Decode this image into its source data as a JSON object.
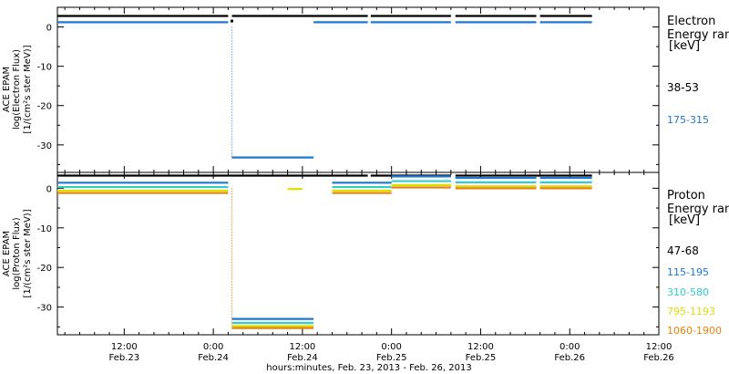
{
  "xaxis": {
    "tick_labels": [
      {
        "time": "12:00",
        "date": "Feb.23"
      },
      {
        "time": "0:00",
        "date": "Feb.24"
      },
      {
        "time": "12:00",
        "date": "Feb.24"
      },
      {
        "time": "0:00",
        "date": "Feb.25"
      },
      {
        "time": "12:00",
        "date": "Feb.25"
      },
      {
        "time": "0:00",
        "date": "Feb.26"
      },
      {
        "time": "12:00",
        "date": "Feb.26"
      }
    ],
    "title": "hours:minutes, Feb. 23, 2013 - Feb. 26, 2013"
  },
  "chart_data": [
    {
      "type": "scatter",
      "ylabel_lines": [
        "ACE EPAM",
        "log(Electron Flux)",
        "[1/(cm²s ster MeV)]"
      ],
      "ylim": [
        -37,
        5
      ],
      "yticks": [
        0,
        -10,
        -20,
        -30
      ],
      "x_unit": "hours since 2013-02-23 00:00",
      "xlim": [
        3,
        84
      ],
      "legend_title": [
        "Electron",
        "Energy ran",
        "[keV]"
      ],
      "series": [
        {
          "name": "38-53",
          "color": "#000000",
          "segments": [
            {
              "x": [
                3,
                26
              ],
              "y": 2.8
            },
            {
              "x": 26.5,
              "y": 1.5
            },
            {
              "x": [
                26.5,
                44.8
              ],
              "y": 2.8
            },
            {
              "x": [
                45.2,
                56
              ],
              "y": 2.8
            },
            {
              "x": [
                56.6,
                67.5
              ],
              "y": 2.8
            },
            {
              "x": [
                68,
                75
              ],
              "y": 2.8
            }
          ]
        },
        {
          "name": "175-315",
          "color": "#1f77d4",
          "segments": [
            {
              "x": [
                3,
                26
              ],
              "y": 1.2
            },
            {
              "x": [
                26.5,
                37.5
              ],
              "y": -33.2
            },
            {
              "x": [
                37.5,
                44.8
              ],
              "y": 1.2
            },
            {
              "x": [
                45.2,
                56
              ],
              "y": 1.2
            },
            {
              "x": [
                56.6,
                67.5
              ],
              "y": 1.2
            },
            {
              "x": [
                68,
                75
              ],
              "y": 1.2
            }
          ]
        }
      ]
    },
    {
      "type": "scatter",
      "ylabel_lines": [
        "ACE EPAM",
        "log(Proton Flux)",
        "[1/(cm²s ster MeV)]"
      ],
      "ylim": [
        -37,
        4
      ],
      "yticks": [
        0,
        -10,
        -20,
        -30
      ],
      "x_unit": "hours since 2013-02-23 00:00",
      "xlim": [
        3,
        84
      ],
      "legend_title": [
        "Proton",
        "Energy ran",
        "[keV]"
      ],
      "series": [
        {
          "name": "47-68",
          "color": "#000000",
          "segments": [
            {
              "x": [
                3,
                44.8
              ],
              "y": 3.2
            },
            {
              "x": [
                45.2,
                56
              ],
              "y": 3.2
            },
            {
              "x": [
                56.6,
                75
              ],
              "y": 3.2
            }
          ]
        },
        {
          "name": "115-195",
          "color": "#1f77d4",
          "segments": [
            {
              "x": [
                3,
                26
              ],
              "y": 1.4
            },
            {
              "x": [
                26.5,
                37.5
              ],
              "y": -33.0
            },
            {
              "x": [
                40,
                48
              ],
              "y": 1.4
            },
            {
              "x": [
                48,
                56
              ],
              "y": 3.0
            },
            {
              "x": [
                56.6,
                67.5
              ],
              "y": 2.6
            },
            {
              "x": [
                68,
                75
              ],
              "y": 2.6
            }
          ]
        },
        {
          "name": "310-580",
          "color": "#33cccc",
          "segments": [
            {
              "x": [
                3,
                26
              ],
              "y": 0.3
            },
            {
              "x": [
                26.5,
                37.5
              ],
              "y": -34.0
            },
            {
              "x": [
                40,
                48
              ],
              "y": 0.3
            },
            {
              "x": [
                48,
                56
              ],
              "y": 1.8
            },
            {
              "x": [
                56.6,
                67.5
              ],
              "y": 1.5
            },
            {
              "x": [
                68,
                75
              ],
              "y": 1.5
            }
          ]
        },
        {
          "name": "795-1193",
          "color": "#dddd00",
          "segments": [
            {
              "x": [
                3,
                26
              ],
              "y": -0.6
            },
            {
              "x": [
                26.5,
                37.5
              ],
              "y": -34.8
            },
            {
              "x": [
                34,
                36
              ],
              "y": -0.2
            },
            {
              "x": [
                40,
                48
              ],
              "y": -0.6
            },
            {
              "x": [
                48,
                56
              ],
              "y": 0.8
            },
            {
              "x": [
                56.6,
                67.5
              ],
              "y": 0.5
            },
            {
              "x": [
                68,
                75
              ],
              "y": 0.5
            }
          ]
        },
        {
          "name": "1060-1900",
          "color": "#e8820c",
          "segments": [
            {
              "x": [
                3,
                26
              ],
              "y": -1.2
            },
            {
              "x": [
                26.5,
                37.5
              ],
              "y": -35.3
            },
            {
              "x": [
                40,
                48
              ],
              "y": -1.2
            },
            {
              "x": [
                48,
                56
              ],
              "y": 0.2
            },
            {
              "x": [
                56.6,
                67.5
              ],
              "y": 0.0
            },
            {
              "x": [
                68,
                75
              ],
              "y": 0.0
            }
          ]
        }
      ]
    }
  ]
}
